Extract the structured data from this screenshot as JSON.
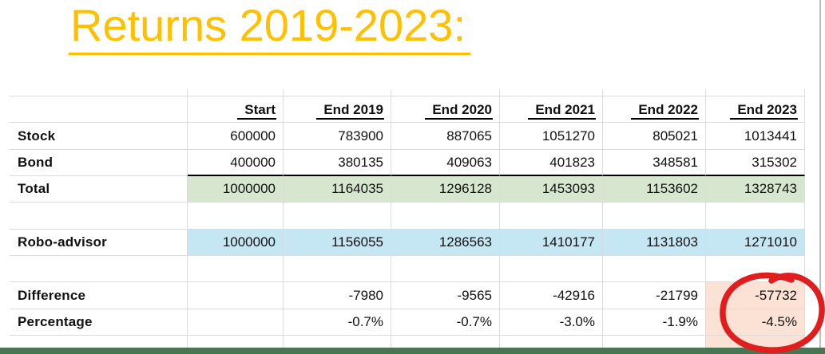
{
  "title": {
    "text": "Returns 2019-2023:"
  },
  "table": {
    "headers": [
      "",
      "Start",
      "End 2019",
      "End 2020",
      "End 2021",
      "End 2022",
      "End 2023"
    ],
    "rows": [
      {
        "label": "Stock",
        "values": [
          "600000",
          "783900",
          "887065",
          "1051270",
          "805021",
          "1013441"
        ],
        "fill": null
      },
      {
        "label": "Bond",
        "values": [
          "400000",
          "380135",
          "409063",
          "401823",
          "348581",
          "315302"
        ],
        "fill": null,
        "bottom_border": "black"
      },
      {
        "label": "Total",
        "values": [
          "1000000",
          "1164035",
          "1296128",
          "1453093",
          "1153602",
          "1328743"
        ],
        "fill": "green"
      },
      {
        "label": "",
        "values": [
          "",
          "",
          "",
          "",
          "",
          ""
        ],
        "fill": null
      },
      {
        "label": "Robo-advisor",
        "values": [
          "1000000",
          "1156055",
          "1286563",
          "1410177",
          "1131803",
          "1271010"
        ],
        "fill": "blue"
      },
      {
        "label": "",
        "values": [
          "",
          "",
          "",
          "",
          "",
          ""
        ],
        "fill": null
      },
      {
        "label": "Difference",
        "values": [
          "",
          "-7980",
          "-9565",
          "-42916",
          "-21799",
          "-57732"
        ],
        "fill": null,
        "highlight_last": "pink"
      },
      {
        "label": "Percentage",
        "values": [
          "",
          "-0.7%",
          "-0.7%",
          "-3.0%",
          "-1.9%",
          "-4.5%"
        ],
        "fill": null,
        "highlight_last": "pink"
      }
    ]
  },
  "annotation": {
    "shape": "hand-drawn-red-circle",
    "around": "End 2023 Difference and Percentage cells"
  },
  "colors": {
    "title": "#FFC000",
    "gridline": "#DCDCDC",
    "green_fill": "#D7E7CF",
    "blue_fill": "#C5E7F3",
    "pink_fill": "#FBE2D5",
    "red_annotation": "#E01E1E",
    "bottom_bar": "#4A7552"
  }
}
